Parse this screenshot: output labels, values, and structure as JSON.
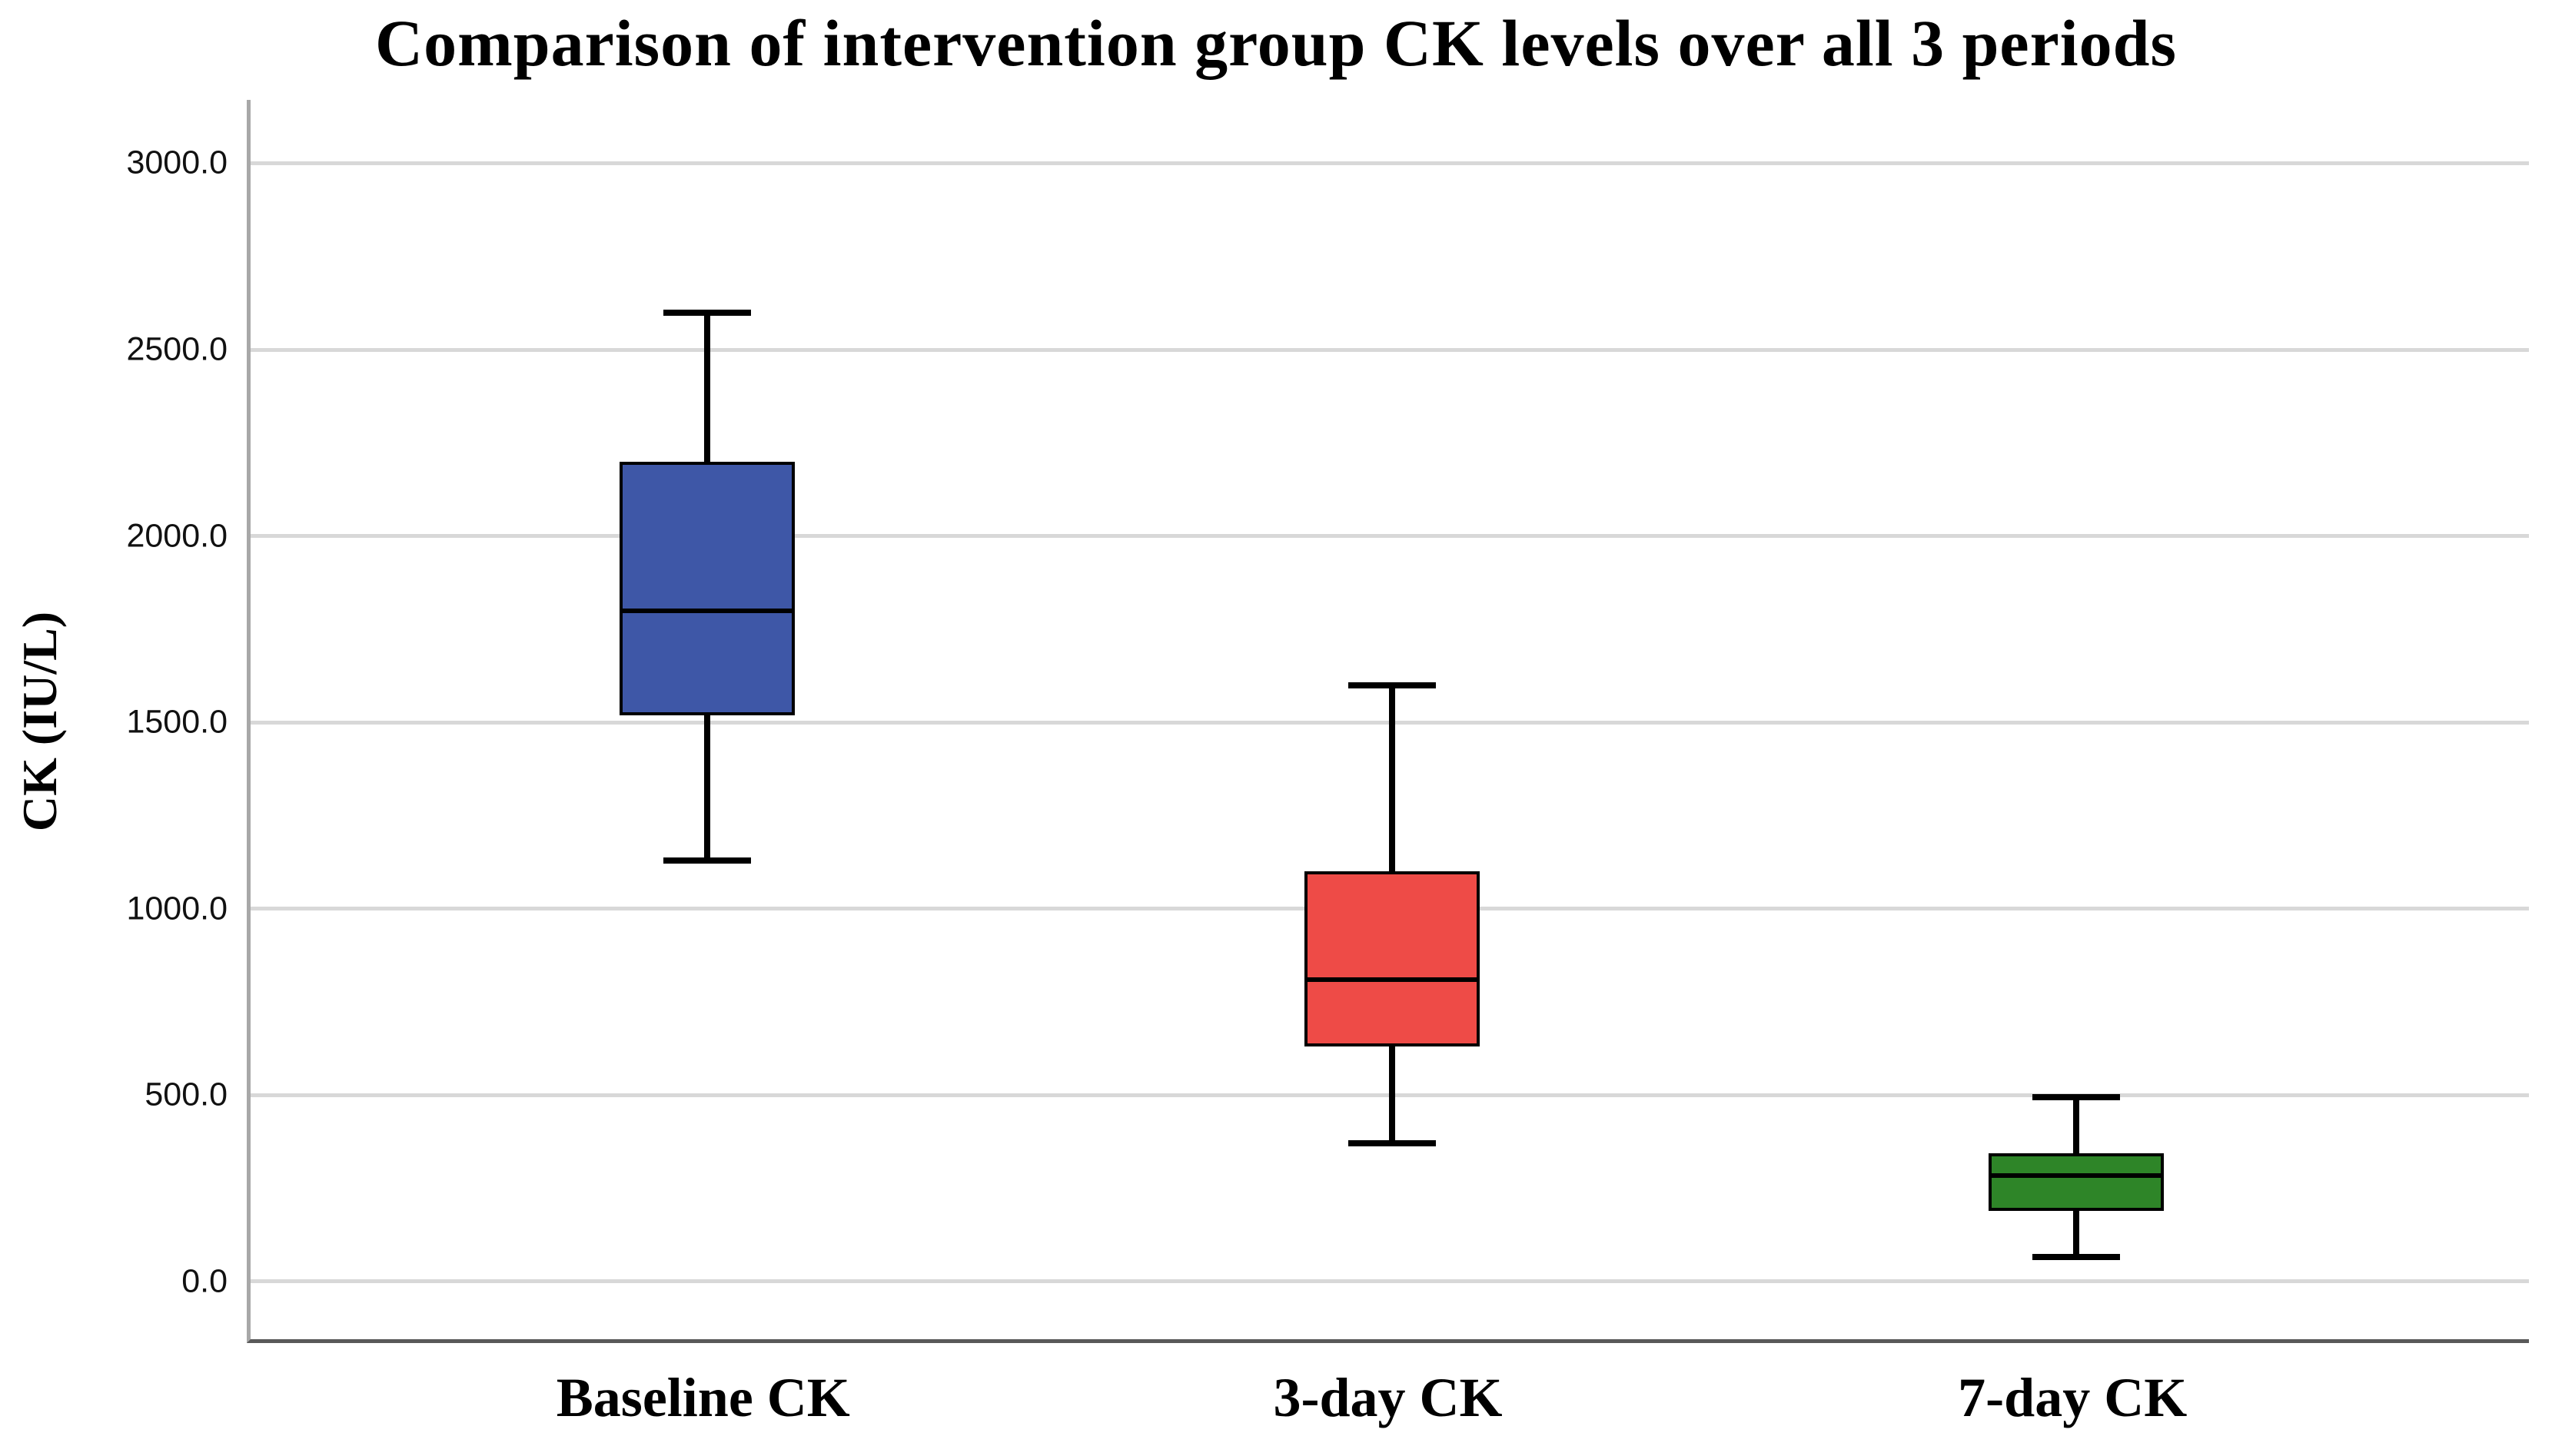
{
  "chart_data": {
    "type": "box",
    "title": "Comparison of intervention group CK levels over all 3 periods",
    "xlabel": "",
    "ylabel": "CK (IU/L)",
    "categories": [
      "Baseline CK",
      "3-day CK",
      "7-day CK"
    ],
    "series": [
      {
        "name": "Baseline CK",
        "color": "#3E57A7",
        "min": 1130,
        "q1": 1520,
        "median": 1800,
        "q3": 2200,
        "max": 2600
      },
      {
        "name": "3-day CK",
        "color": "#EE4B47",
        "min": 370,
        "q1": 630,
        "median": 810,
        "q3": 1100,
        "max": 1600
      },
      {
        "name": "7-day CK",
        "color": "#2E8528",
        "min": 65,
        "q1": 190,
        "median": 285,
        "q3": 345,
        "max": 495
      }
    ],
    "yticks": [
      {
        "label": "0.0",
        "value": 0
      },
      {
        "label": "500.0",
        "value": 500
      },
      {
        "label": "1000.0",
        "value": 1000
      },
      {
        "label": "1500.0",
        "value": 1500
      },
      {
        "label": "2000.0",
        "value": 2000
      },
      {
        "label": "2500.0",
        "value": 2500
      },
      {
        "label": "3000.0",
        "value": 3000
      }
    ],
    "ylim": [
      -165,
      3170
    ],
    "grid": "horizontal",
    "legend": false,
    "colors": {
      "background": "#FFFFFF",
      "gridline": "#D8D8D8",
      "y_axis_line": "#A8A8A8",
      "x_axis_line": "#595959",
      "box_border": "#000000",
      "whisker": "#000000",
      "median": "#000000"
    }
  }
}
